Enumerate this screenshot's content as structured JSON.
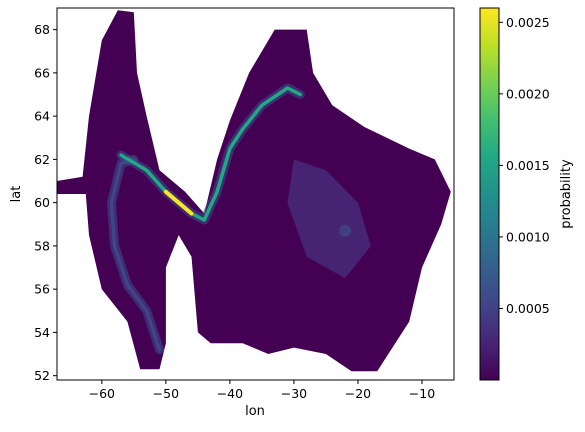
{
  "chart_data": {
    "type": "heatmap",
    "title": "",
    "xlabel": "lon",
    "ylabel": "lat",
    "xlim": [
      -67,
      -5
    ],
    "ylim": [
      51.8,
      69
    ],
    "xticks": [
      -60,
      -50,
      -40,
      -30,
      -20,
      -10
    ],
    "xtick_labels": [
      "−60",
      "−50",
      "−40",
      "−30",
      "−20",
      "−10"
    ],
    "yticks": [
      52,
      54,
      56,
      58,
      60,
      62,
      64,
      66,
      68
    ],
    "yticks_labels": [
      "52",
      "54",
      "56",
      "58",
      "60",
      "62",
      "64",
      "66",
      "68"
    ],
    "colorbar": {
      "label": "probability",
      "colormap": "viridis",
      "range": [
        0.0,
        0.0026
      ],
      "ticks": [
        0.0005,
        0.001,
        0.0015,
        0.002,
        0.0025
      ],
      "tick_labels": [
        "0.0005",
        "0.0010",
        "0.0015",
        "0.0020",
        "0.0025"
      ]
    },
    "high_probability_paths": [
      {
        "description_points": [
          [
            -51,
            53.2
          ],
          [
            -53,
            55
          ],
          [
            -56,
            56.2
          ],
          [
            -58,
            58
          ],
          [
            -58.5,
            60
          ],
          [
            -57,
            61.8
          ],
          [
            -55,
            62
          ]
        ],
        "peak": 0.0012
      },
      {
        "description_points": [
          [
            -57,
            62.2
          ],
          [
            -53,
            61.5
          ],
          [
            -50,
            60.5
          ],
          [
            -48,
            60
          ],
          [
            -46,
            59.5
          ],
          [
            -44,
            59.2
          ],
          [
            -42,
            60.5
          ],
          [
            -40,
            62.5
          ],
          [
            -38,
            63.4
          ],
          [
            -35,
            64.5
          ],
          [
            -31,
            65.3
          ],
          [
            -29,
            65
          ]
        ],
        "peak": 0.0026
      },
      {
        "description_points": [
          [
            -22,
            58.7
          ]
        ],
        "peak": 0.0009
      }
    ],
    "grid": false
  }
}
